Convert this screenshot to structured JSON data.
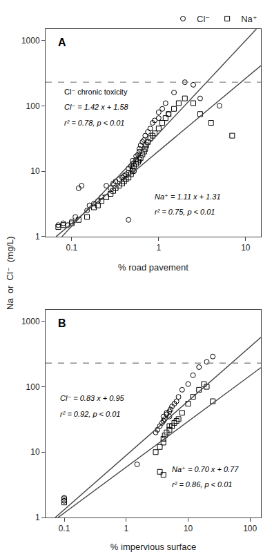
{
  "chart_data": [
    {
      "type": "scatter",
      "xlabel": "% road pavement",
      "ylabel": "Na  or  Cl⁻  (mg/L)",
      "log": true,
      "grid": false,
      "legend": "upper right",
      "xlim": [
        0.05,
        15
      ],
      "ylim": [
        1,
        1500
      ],
      "xticks": [
        0.1,
        1,
        10
      ],
      "yticks": [
        1,
        10,
        100,
        1000
      ],
      "annotations": [
        "A",
        "Cl⁻ chronic toxicity",
        "Cl⁻ = 1.42 x + 1.58",
        "r² = 0.78, p < 0.01",
        "Na⁺ = 1.11 x + 1.31",
        "r² = 0.75, p < 0.01"
      ],
      "series": [
        {
          "name": "Cl⁻",
          "type": "scatter",
          "marker": "circle-open",
          "color": "#000000",
          "x": [
            0.07,
            0.08,
            0.09,
            0.1,
            0.11,
            0.12,
            0.13,
            0.15,
            0.16,
            0.18,
            0.2,
            0.22,
            0.25,
            0.28,
            0.3,
            0.32,
            0.35,
            0.38,
            0.4,
            0.42,
            0.45,
            0.45,
            0.48,
            0.5,
            0.5,
            0.52,
            0.55,
            0.55,
            0.58,
            0.6,
            0.6,
            0.62,
            0.65,
            0.68,
            0.7,
            0.75,
            0.8,
            0.85,
            0.9,
            1.0,
            1.0,
            1.1,
            1.2,
            1.3,
            1.5,
            2.0,
            2.5,
            3.0,
            5.0,
            0.45
          ],
          "values": [
            1.5,
            1.6,
            1.5,
            1.7,
            2.0,
            5.5,
            6.0,
            2.5,
            3.0,
            3.2,
            3.5,
            4.0,
            6.0,
            5.5,
            6.5,
            7.0,
            7.5,
            8.0,
            8.5,
            9.0,
            9.5,
            11.0,
            12.0,
            13.0,
            14.5,
            10.0,
            15.0,
            17.0,
            18.0,
            20.0,
            22.0,
            25.0,
            28.0,
            30.0,
            35.0,
            40.0,
            45.0,
            55.0,
            60.0,
            80.0,
            65.0,
            90.0,
            110.0,
            75.0,
            160.0,
            230.0,
            210.0,
            130.0,
            100.0,
            1.8
          ]
        },
        {
          "name": "Na⁺",
          "type": "scatter",
          "marker": "square-open",
          "color": "#000000",
          "x": [
            0.07,
            0.08,
            0.1,
            0.12,
            0.15,
            0.18,
            0.2,
            0.22,
            0.25,
            0.28,
            0.3,
            0.32,
            0.35,
            0.38,
            0.4,
            0.42,
            0.45,
            0.48,
            0.5,
            0.5,
            0.52,
            0.55,
            0.58,
            0.6,
            0.62,
            0.65,
            0.68,
            0.7,
            0.72,
            0.75,
            0.8,
            0.85,
            0.9,
            1.0,
            1.1,
            1.2,
            1.3,
            1.5,
            1.7,
            2.0,
            2.5,
            3.0,
            4.0,
            7.0
          ],
          "values": [
            1.4,
            1.5,
            1.6,
            1.8,
            2.0,
            2.8,
            3.0,
            3.5,
            4.0,
            4.5,
            5.0,
            5.5,
            6.0,
            6.5,
            7.0,
            7.5,
            8.0,
            9.0,
            10.0,
            11.0,
            12.0,
            13.0,
            14.0,
            15.0,
            16.0,
            18.0,
            20.0,
            22.0,
            25.0,
            28.0,
            32.0,
            35.0,
            38.0,
            45.0,
            55.0,
            65.0,
            75.0,
            90.0,
            110.0,
            130.0,
            110.0,
            75.0,
            55.0,
            35.0
          ]
        },
        {
          "type": "line",
          "line_style": "solid",
          "color": "#444444",
          "x": [
            0.07715,
            13.3
          ],
          "values": [
            1,
            1500
          ]
        },
        {
          "type": "line",
          "line_style": "solid",
          "color": "#444444",
          "x": [
            0.06604,
            15
          ],
          "values": [
            1,
            412.5
          ]
        },
        {
          "type": "line",
          "line_style": "dashed",
          "color": "#888888",
          "x": [
            0.05,
            15
          ],
          "values": [
            230,
            230
          ]
        }
      ]
    },
    {
      "type": "scatter",
      "xlabel": "% impervious surface",
      "log": true,
      "grid": false,
      "xlim": [
        0.05,
        150
      ],
      "ylim": [
        1,
        1500
      ],
      "xticks": [
        0.1,
        1,
        10,
        100
      ],
      "yticks": [
        1,
        10,
        100,
        1000
      ],
      "annotations": [
        "B",
        "Cl⁻ = 0.83 x + 0.95",
        "r² = 0.92, p < 0.01",
        "Na⁺ = 0.70 x + 0.77",
        "r² = 0.86, p < 0.01"
      ],
      "series": [
        {
          "type": "scatter",
          "marker": "circle-open",
          "color": "#000000",
          "x": [
            0.1,
            0.1,
            1.5,
            3.0,
            3.2,
            3.5,
            3.8,
            4.0,
            4.0,
            4.2,
            4.5,
            4.5,
            5.0,
            5.0,
            5.2,
            5.5,
            6.0,
            6.5,
            7.0,
            8.0,
            10.0,
            12.0,
            15.0,
            20.0,
            25.0
          ],
          "values": [
            2.0,
            1.8,
            6.5,
            20.0,
            22.0,
            25.0,
            28.0,
            30.0,
            35.0,
            32.0,
            38.0,
            40.0,
            35.0,
            42.0,
            45.0,
            50.0,
            55.0,
            60.0,
            70.0,
            90.0,
            110.0,
            150.0,
            200.0,
            240.0,
            290.0
          ]
        },
        {
          "type": "scatter",
          "marker": "square-open",
          "color": "#000000",
          "x": [
            0.1,
            0.1,
            3.0,
            3.5,
            4.0,
            4.0,
            4.2,
            4.5,
            5.0,
            5.0,
            5.5,
            6.0,
            6.5,
            7.0,
            8.0,
            10.0,
            12.0,
            15.0,
            18.0,
            20.0,
            3.5,
            4.0,
            25.0
          ],
          "values": [
            1.9,
            1.7,
            10.0,
            12.0,
            14.0,
            16.0,
            18.0,
            20.0,
            22.0,
            25.0,
            25.0,
            28.0,
            30.0,
            32.0,
            40.0,
            55.0,
            70.0,
            90.0,
            110.0,
            100.0,
            5.0,
            4.5,
            60.0
          ]
        },
        {
          "type": "line",
          "line_style": "solid",
          "color": "#444444",
          "x": [
            0.07168,
            150
          ],
          "values": [
            1,
            570.4
          ]
        },
        {
          "type": "line",
          "line_style": "solid",
          "color": "#444444",
          "x": [
            0.07943,
            150
          ],
          "values": [
            1,
            196.5
          ]
        },
        {
          "type": "line",
          "line_style": "dashed",
          "color": "#888888",
          "x": [
            0.05,
            150
          ],
          "values": [
            230,
            230
          ]
        }
      ]
    }
  ]
}
